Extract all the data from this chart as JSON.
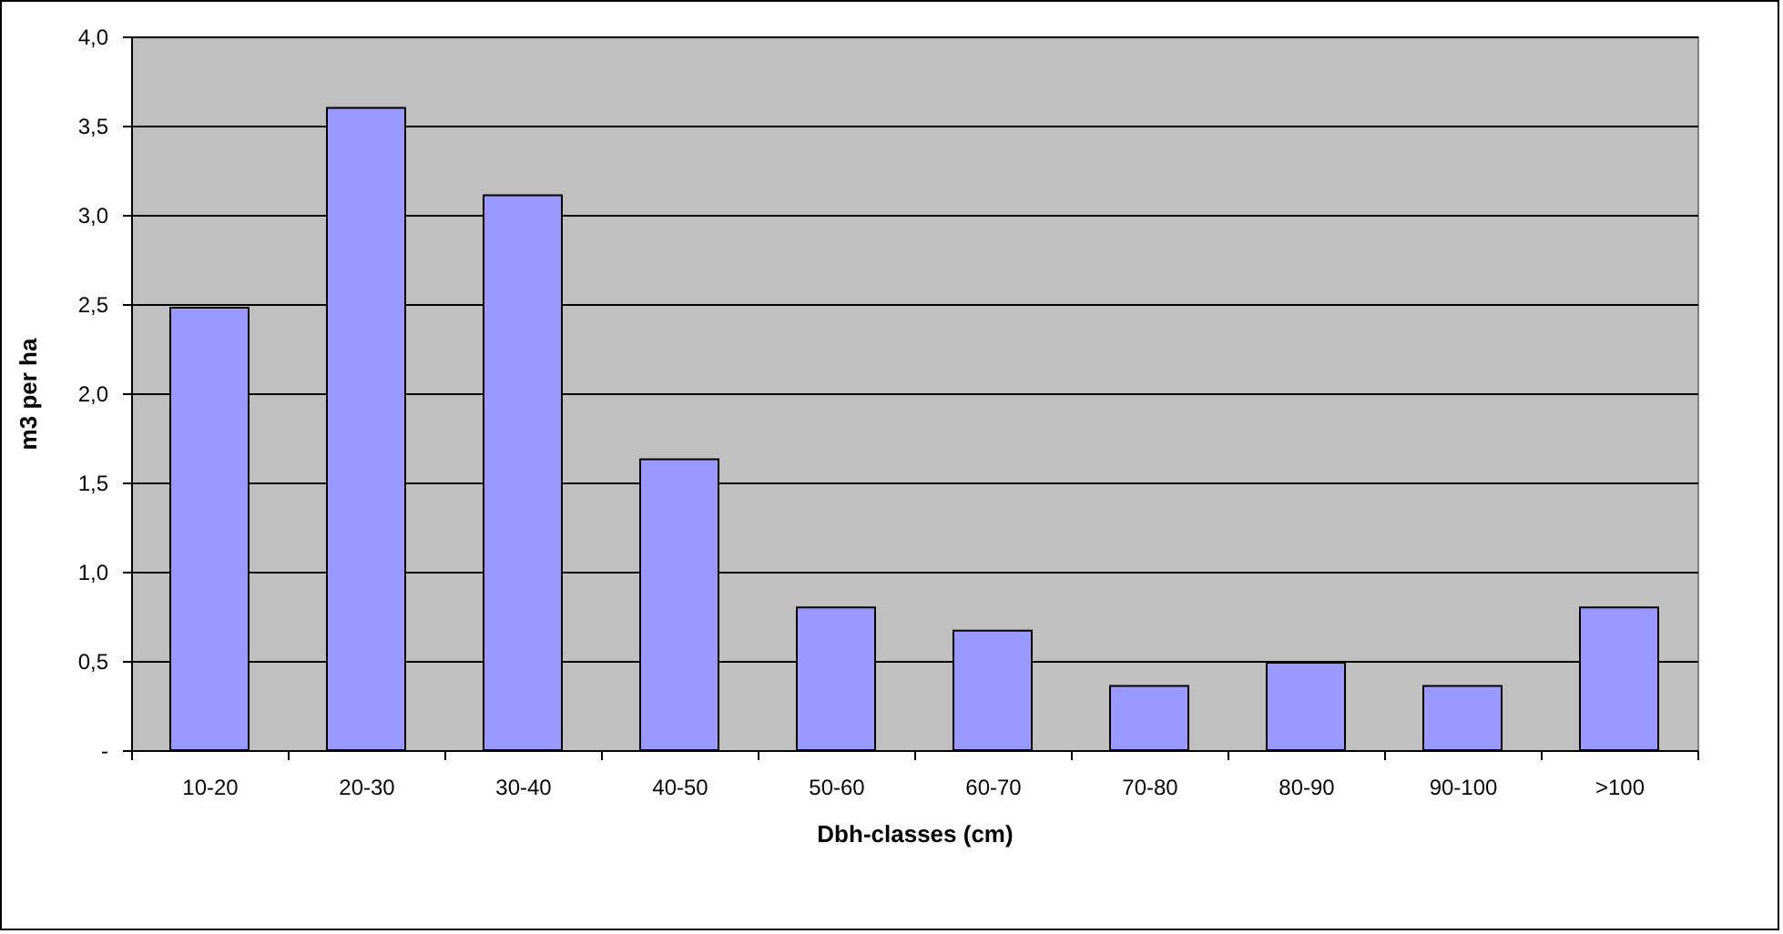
{
  "chart_data": {
    "type": "bar",
    "xlabel": "Dbh-classes (cm)",
    "ylabel": "m3 per ha",
    "categories": [
      "10-20",
      "20-30",
      "30-40",
      "40-50",
      "50-60",
      "60-70",
      "70-80",
      "80-90",
      "90-100",
      ">100"
    ],
    "values": [
      2.48,
      3.6,
      3.11,
      1.63,
      0.8,
      0.67,
      0.36,
      0.49,
      0.36,
      0.8
    ],
    "color": "#9999ff",
    "ylim": [
      0,
      4
    ],
    "yticks": [
      {
        "value": 0,
        "label": "-"
      },
      {
        "value": 0.5,
        "label": "0,5"
      },
      {
        "value": 1,
        "label": "1,0"
      },
      {
        "value": 1.5,
        "label": "1,5"
      },
      {
        "value": 2,
        "label": "2,0"
      },
      {
        "value": 2.5,
        "label": "2,5"
      },
      {
        "value": 3,
        "label": "3,0"
      },
      {
        "value": 3.5,
        "label": "3,5"
      },
      {
        "value": 4,
        "label": "4,0"
      }
    ],
    "grid": "y"
  }
}
